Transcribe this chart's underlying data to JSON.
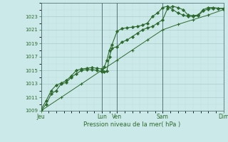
{
  "bg_color": "#cce9e9",
  "grid_color_major": "#aacccc",
  "grid_color_minor": "#bbdddd",
  "line_color": "#2d6a2d",
  "text_color": "#2d6a2d",
  "xlabel": "Pression niveau de la mer( hPa )",
  "ylim": [
    1009,
    1025
  ],
  "yticks": [
    1009,
    1011,
    1013,
    1015,
    1017,
    1019,
    1021,
    1023
  ],
  "xtick_labels": [
    "Jeu",
    "Lun",
    "Ven",
    "Sam",
    "Dim"
  ],
  "xtick_positions": [
    0.0,
    0.333,
    0.417,
    0.667,
    1.0
  ],
  "vline_positions": [
    0.0,
    0.333,
    0.417,
    0.667,
    1.0
  ],
  "series1_x": [
    0.0,
    0.028,
    0.056,
    0.083,
    0.111,
    0.139,
    0.167,
    0.194,
    0.222,
    0.25,
    0.278,
    0.306,
    0.333,
    0.347,
    0.361,
    0.375,
    0.389,
    0.417,
    0.444,
    0.472,
    0.5,
    0.528,
    0.556,
    0.583,
    0.611,
    0.639,
    0.667,
    0.694,
    0.722,
    0.75,
    0.778,
    0.806,
    0.833,
    0.861,
    0.889,
    0.917,
    0.944,
    0.972,
    1.0
  ],
  "series1_y": [
    1009.0,
    1010.0,
    1011.5,
    1012.0,
    1013.0,
    1013.2,
    1014.0,
    1014.5,
    1015.0,
    1015.1,
    1015.1,
    1015.0,
    1014.8,
    1015.5,
    1016.5,
    1018.0,
    1018.8,
    1020.8,
    1021.2,
    1021.3,
    1021.4,
    1021.5,
    1021.7,
    1022.0,
    1023.0,
    1023.5,
    1024.3,
    1024.5,
    1024.0,
    1023.5,
    1023.2,
    1023.0,
    1023.0,
    1023.1,
    1023.8,
    1024.1,
    1024.2,
    1024.2,
    1024.1
  ],
  "series2_x": [
    0.0,
    0.028,
    0.056,
    0.083,
    0.111,
    0.139,
    0.167,
    0.194,
    0.222,
    0.25,
    0.278,
    0.306,
    0.333,
    0.347,
    0.361,
    0.375,
    0.389,
    0.417,
    0.444,
    0.472,
    0.5,
    0.528,
    0.556,
    0.583,
    0.611,
    0.639,
    0.667,
    0.694,
    0.722,
    0.75,
    0.778,
    0.806,
    0.833,
    0.861,
    0.889,
    0.917,
    0.944,
    0.972,
    1.0
  ],
  "series2_y": [
    1009.2,
    1010.5,
    1012.0,
    1012.8,
    1013.1,
    1013.5,
    1014.2,
    1015.0,
    1015.2,
    1015.3,
    1015.4,
    1015.3,
    1015.2,
    1014.8,
    1014.9,
    1017.0,
    1018.3,
    1018.5,
    1019.2,
    1019.5,
    1020.0,
    1020.5,
    1021.0,
    1021.3,
    1021.5,
    1022.0,
    1022.5,
    1024.2,
    1024.5,
    1024.3,
    1024.0,
    1023.2,
    1023.1,
    1023.2,
    1024.0,
    1024.3,
    1024.3,
    1024.2,
    1024.2
  ],
  "series3_x": [
    0.0,
    0.111,
    0.222,
    0.333,
    0.417,
    0.5,
    0.583,
    0.667,
    0.75,
    0.833,
    0.917,
    1.0
  ],
  "series3_y": [
    1009.0,
    1011.0,
    1013.0,
    1015.0,
    1016.5,
    1018.0,
    1019.5,
    1021.0,
    1021.8,
    1022.5,
    1023.2,
    1024.0
  ]
}
